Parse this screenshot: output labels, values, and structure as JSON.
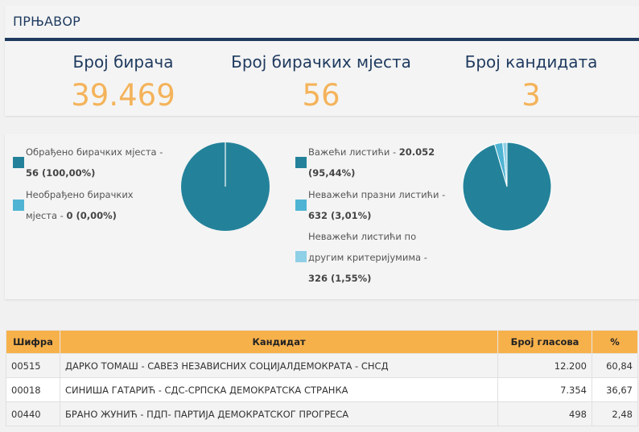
{
  "header": {
    "title": "ПРЊАВОР"
  },
  "stats": [
    {
      "label": "Број бирача",
      "value": "39.469"
    },
    {
      "label": "Број бирачких мјеста",
      "value": "56"
    },
    {
      "label": "Број кандидата",
      "value": "3"
    }
  ],
  "stations": {
    "items": [
      {
        "line1": "Обрађено бирачких мјеста -",
        "line2": "56 (100,00%)",
        "color": "#23829a"
      },
      {
        "line1": "Необрађено бирачких",
        "line2_text": "мјеста - ",
        "line2_bold": "0 (0,00%)",
        "color": "#4fb4d3"
      }
    ]
  },
  "ballots": {
    "items": [
      {
        "line1_text": "Важећи листићи - ",
        "line1_bold": "20.052",
        "line2": "(95,44%)",
        "color": "#23829a"
      },
      {
        "line1": "Неважећи празни листићи -",
        "line2": "632 (3,01%)",
        "color": "#4fb4d3"
      },
      {
        "line1": "Неважећи листићи по",
        "line2": "другим критеријумима -",
        "line3": "326 (1,55%)",
        "color": "#8fd0e6"
      }
    ]
  },
  "chart_data": [
    {
      "type": "pie",
      "slices": [
        {
          "label": "Обрађено бирачких мјеста",
          "value": 100.0,
          "color": "#23829a"
        },
        {
          "label": "Необрађено бирачких мјеста",
          "value": 0.0,
          "color": "#4fb4d3"
        }
      ]
    },
    {
      "type": "pie",
      "slices": [
        {
          "label": "Важећи листићи",
          "value": 95.44,
          "color": "#23829a"
        },
        {
          "label": "Неважећи празни листићи",
          "value": 3.01,
          "color": "#4fb4d3"
        },
        {
          "label": "Неважећи листићи по другим критеријумима",
          "value": 1.55,
          "color": "#8fd0e6"
        }
      ]
    }
  ],
  "table": {
    "headers": {
      "code": "Шифра",
      "candidate": "Кандидат",
      "votes": "Број гласова",
      "pct": "%"
    },
    "rows": [
      {
        "code": "00515",
        "candidate": "ДАРКО ТОМАШ - САВЕЗ НЕЗАВИСНИХ СОЦИЈАЛДЕМОКРАТА - СНСД",
        "votes": "12.200",
        "pct": "60,84"
      },
      {
        "code": "00018",
        "candidate": "СИНИША ГАТАРИЋ - СДС-СРПСКА ДЕМОКРАТСКА СТРАНКА",
        "votes": "7.354",
        "pct": "36,67"
      },
      {
        "code": "00440",
        "candidate": "БРАНО ЖУНИЋ - ПДП- ПАРТИЈА ДЕМОКРАТСКОГ ПРОГРЕСА",
        "votes": "498",
        "pct": "2,48"
      }
    ]
  }
}
